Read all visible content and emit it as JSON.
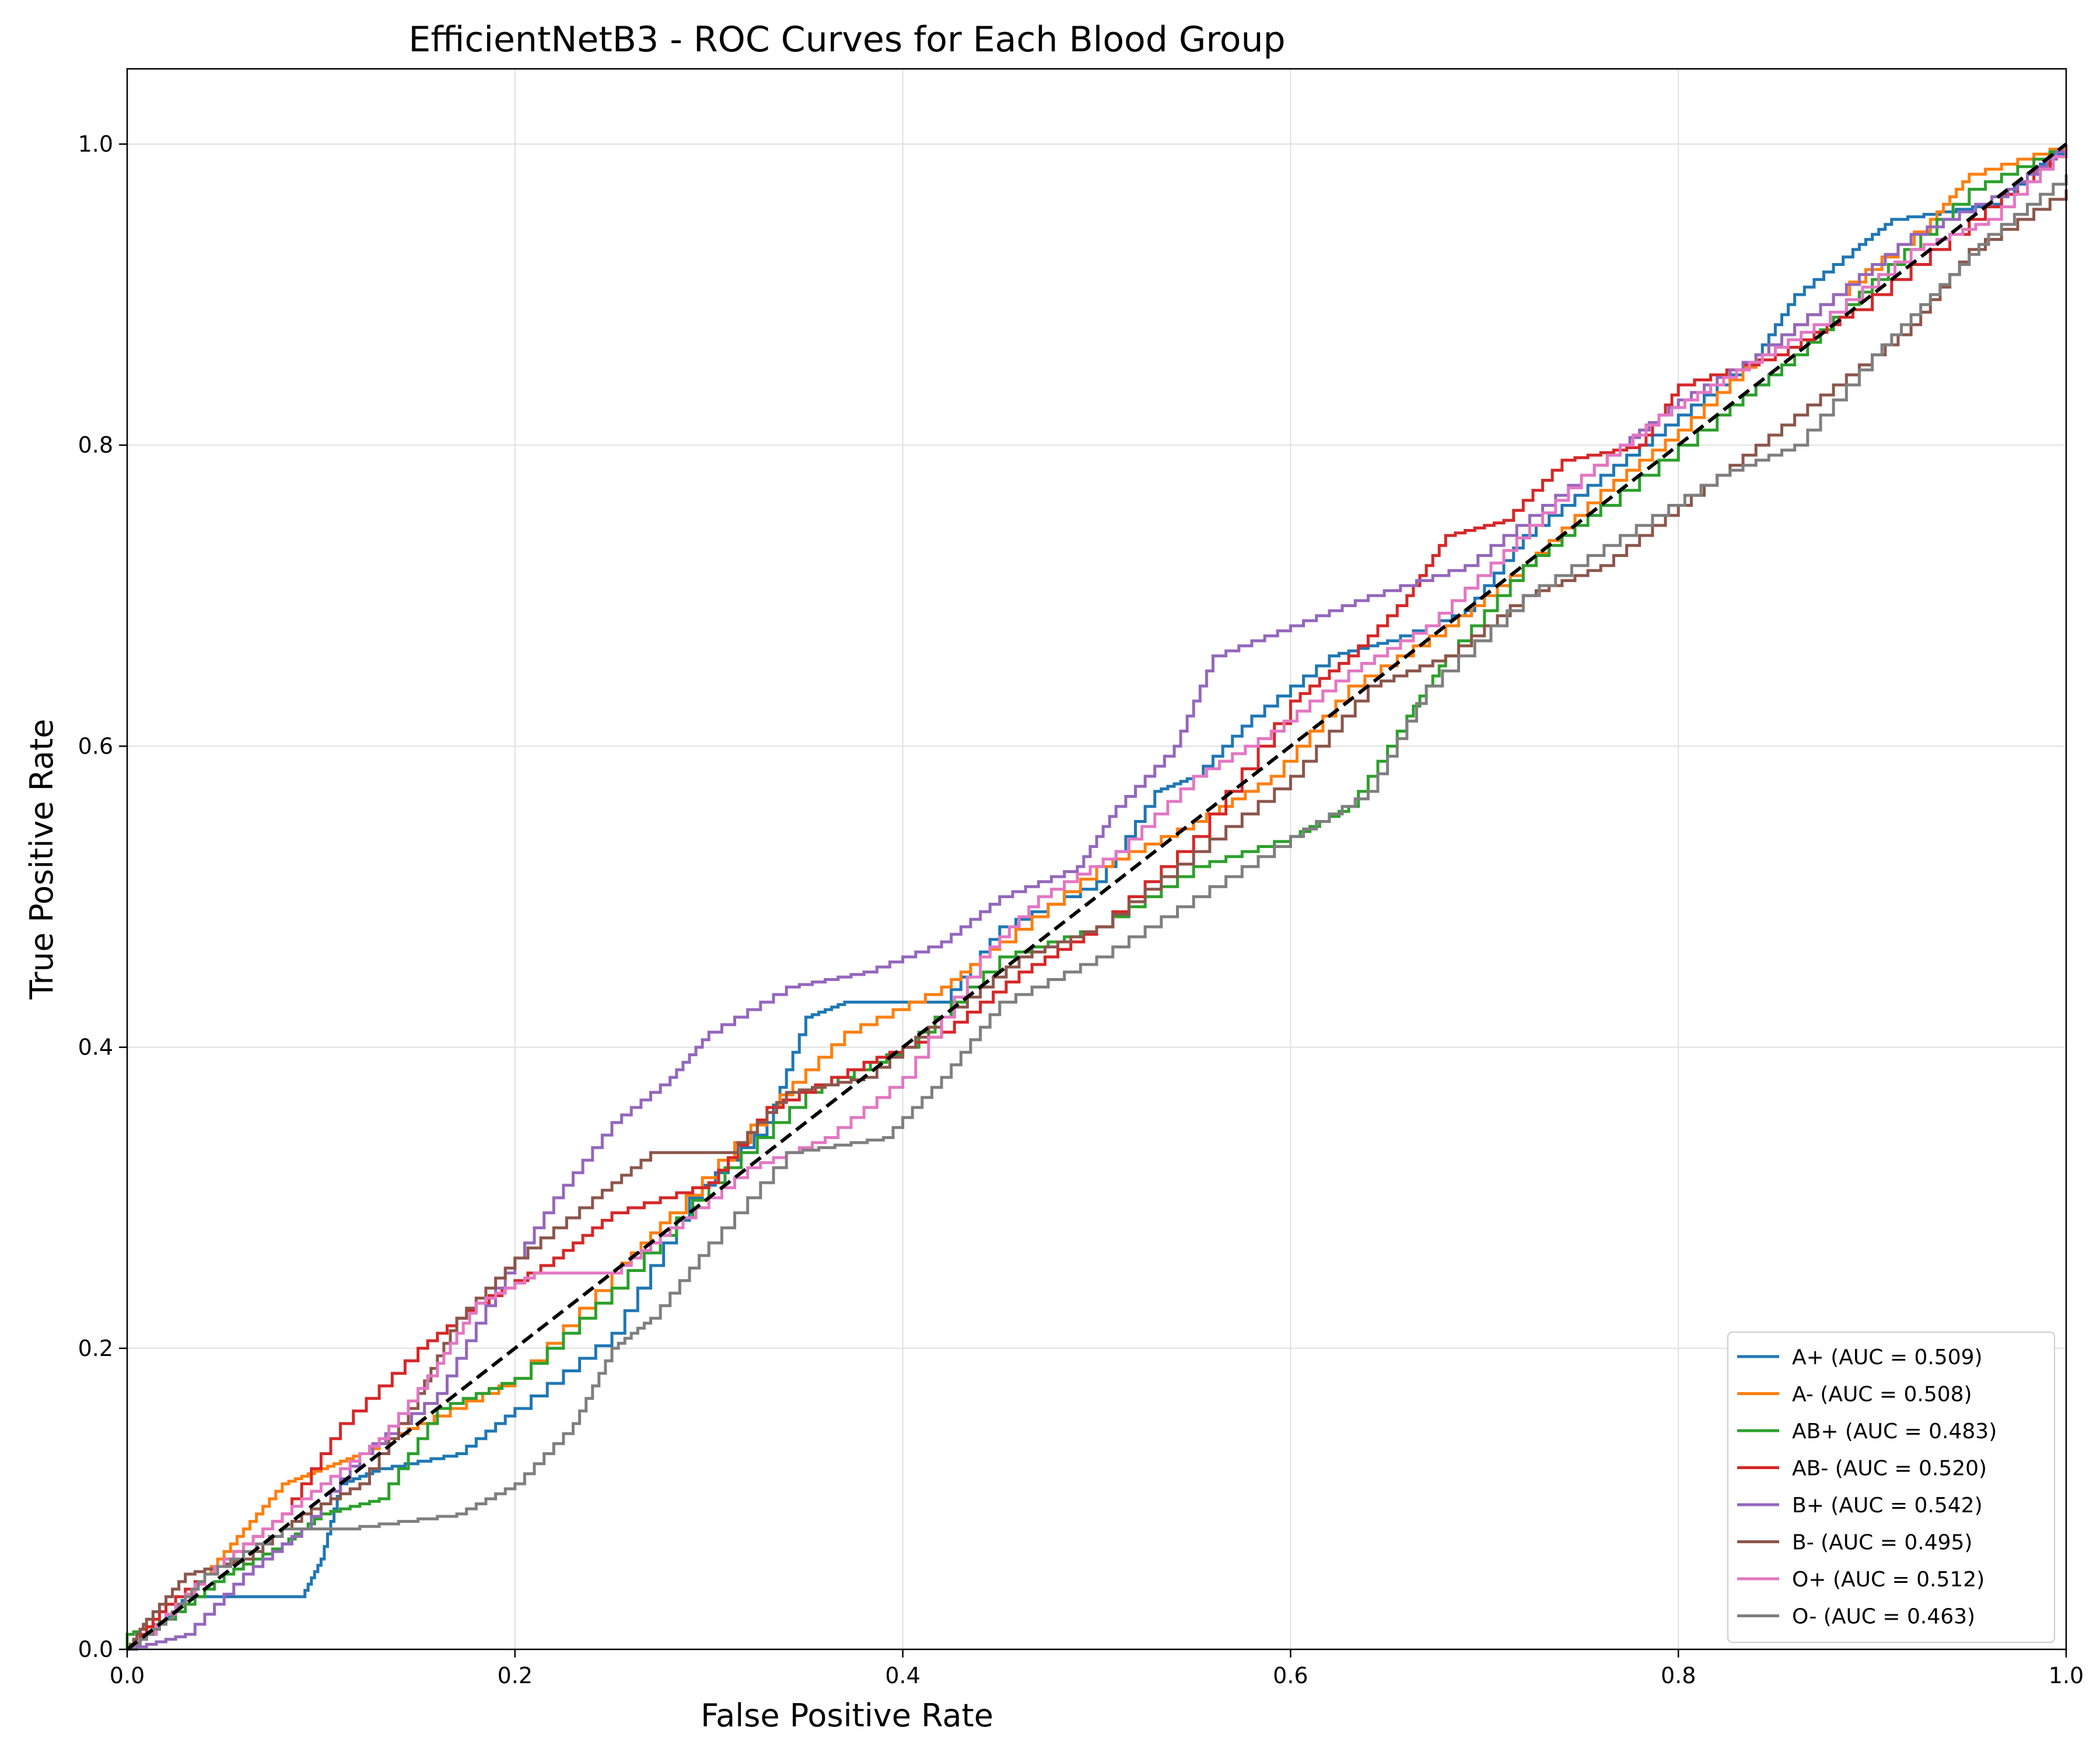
{
  "chart_data": {
    "type": "line",
    "title": "EfficientNetB3 - ROC Curves for Each Blood Group",
    "xlabel": "False Positive Rate",
    "ylabel": "True Positive Rate",
    "xlim": [
      0,
      1.0
    ],
    "ylim": [
      0,
      1.05
    ],
    "xticks": [
      0.0,
      0.2,
      0.4,
      0.6,
      0.8,
      1.0
    ],
    "xtick_labels": [
      "0.0",
      "0.2",
      "0.4",
      "0.6",
      "0.8",
      "1.0"
    ],
    "yticks": [
      0.0,
      0.2,
      0.4,
      0.6,
      0.8,
      1.0
    ],
    "ytick_labels": [
      "0.0",
      "0.2",
      "0.4",
      "0.6",
      "0.8",
      "1.0"
    ],
    "grid": true,
    "legend_position": "lower-right",
    "series": [
      {
        "name": "A+ (AUC = 0.509)",
        "color": "#1f77b4",
        "points": [
          [
            0,
            0
          ],
          [
            0.02,
            0.02
          ],
          [
            0.03,
            0.035
          ],
          [
            0.09,
            0.035
          ],
          [
            0.1,
            0.06
          ],
          [
            0.11,
            0.11
          ],
          [
            0.13,
            0.12
          ],
          [
            0.17,
            0.13
          ],
          [
            0.2,
            0.16
          ],
          [
            0.25,
            0.21
          ],
          [
            0.29,
            0.3
          ],
          [
            0.33,
            0.35
          ],
          [
            0.35,
            0.42
          ],
          [
            0.37,
            0.43
          ],
          [
            0.42,
            0.43
          ],
          [
            0.45,
            0.48
          ],
          [
            0.5,
            0.51
          ],
          [
            0.53,
            0.57
          ],
          [
            0.55,
            0.58
          ],
          [
            0.58,
            0.62
          ],
          [
            0.62,
            0.66
          ],
          [
            0.65,
            0.67
          ],
          [
            0.69,
            0.69
          ],
          [
            0.72,
            0.74
          ],
          [
            0.76,
            0.78
          ],
          [
            0.8,
            0.82
          ],
          [
            0.84,
            0.86
          ],
          [
            0.86,
            0.9
          ],
          [
            0.89,
            0.93
          ],
          [
            0.91,
            0.95
          ],
          [
            0.96,
            0.96
          ],
          [
            1.0,
            1.0
          ]
        ]
      },
      {
        "name": "A- (AUC = 0.508)",
        "color": "#ff7f0e",
        "points": [
          [
            0,
            0
          ],
          [
            0.01,
            0.01
          ],
          [
            0.04,
            0.05
          ],
          [
            0.06,
            0.08
          ],
          [
            0.08,
            0.11
          ],
          [
            0.1,
            0.12
          ],
          [
            0.12,
            0.13
          ],
          [
            0.15,
            0.15
          ],
          [
            0.2,
            0.18
          ],
          [
            0.25,
            0.25
          ],
          [
            0.28,
            0.29
          ],
          [
            0.33,
            0.36
          ],
          [
            0.37,
            0.41
          ],
          [
            0.42,
            0.44
          ],
          [
            0.45,
            0.47
          ],
          [
            0.5,
            0.52
          ],
          [
            0.55,
            0.55
          ],
          [
            0.59,
            0.58
          ],
          [
            0.63,
            0.64
          ],
          [
            0.68,
            0.68
          ],
          [
            0.72,
            0.72
          ],
          [
            0.76,
            0.77
          ],
          [
            0.8,
            0.81
          ],
          [
            0.84,
            0.86
          ],
          [
            0.88,
            0.9
          ],
          [
            0.93,
            0.95
          ],
          [
            0.95,
            0.98
          ],
          [
            1.0,
            1.0
          ]
        ]
      },
      {
        "name": "AB+ (AUC = 0.483)",
        "color": "#2ca02c",
        "points": [
          [
            0,
            0
          ],
          [
            0,
            0.01
          ],
          [
            0.02,
            0.02
          ],
          [
            0.05,
            0.05
          ],
          [
            0.08,
            0.07
          ],
          [
            0.1,
            0.09
          ],
          [
            0.13,
            0.1
          ],
          [
            0.16,
            0.16
          ],
          [
            0.2,
            0.18
          ],
          [
            0.25,
            0.24
          ],
          [
            0.3,
            0.31
          ],
          [
            0.35,
            0.37
          ],
          [
            0.4,
            0.4
          ],
          [
            0.45,
            0.46
          ],
          [
            0.5,
            0.48
          ],
          [
            0.55,
            0.52
          ],
          [
            0.6,
            0.54
          ],
          [
            0.63,
            0.56
          ],
          [
            0.66,
            0.62
          ],
          [
            0.68,
            0.66
          ],
          [
            0.72,
            0.72
          ],
          [
            0.76,
            0.76
          ],
          [
            0.82,
            0.82
          ],
          [
            0.86,
            0.86
          ],
          [
            0.9,
            0.91
          ],
          [
            0.95,
            0.97
          ],
          [
            1.0,
            1.0
          ]
        ]
      },
      {
        "name": "AB- (AUC = 0.520)",
        "color": "#d62728",
        "points": [
          [
            0,
            0
          ],
          [
            0.02,
            0.03
          ],
          [
            0.05,
            0.06
          ],
          [
            0.08,
            0.09
          ],
          [
            0.11,
            0.15
          ],
          [
            0.15,
            0.2
          ],
          [
            0.18,
            0.23
          ],
          [
            0.22,
            0.26
          ],
          [
            0.25,
            0.29
          ],
          [
            0.3,
            0.31
          ],
          [
            0.33,
            0.36
          ],
          [
            0.38,
            0.39
          ],
          [
            0.42,
            0.41
          ],
          [
            0.46,
            0.45
          ],
          [
            0.5,
            0.48
          ],
          [
            0.55,
            0.54
          ],
          [
            0.6,
            0.63
          ],
          [
            0.63,
            0.66
          ],
          [
            0.66,
            0.7
          ],
          [
            0.68,
            0.74
          ],
          [
            0.71,
            0.75
          ],
          [
            0.74,
            0.79
          ],
          [
            0.78,
            0.8
          ],
          [
            0.8,
            0.84
          ],
          [
            0.85,
            0.86
          ],
          [
            0.89,
            0.89
          ],
          [
            0.95,
            0.95
          ],
          [
            1.0,
            1.0
          ]
        ]
      },
      {
        "name": "B+ (AUC = 0.542)",
        "color": "#9467bd",
        "points": [
          [
            0,
            0
          ],
          [
            0.03,
            0.01
          ],
          [
            0.06,
            0.05
          ],
          [
            0.09,
            0.08
          ],
          [
            0.12,
            0.13
          ],
          [
            0.16,
            0.17
          ],
          [
            0.19,
            0.24
          ],
          [
            0.22,
            0.3
          ],
          [
            0.25,
            0.35
          ],
          [
            0.28,
            0.38
          ],
          [
            0.3,
            0.41
          ],
          [
            0.34,
            0.44
          ],
          [
            0.38,
            0.45
          ],
          [
            0.42,
            0.47
          ],
          [
            0.45,
            0.5
          ],
          [
            0.49,
            0.52
          ],
          [
            0.51,
            0.56
          ],
          [
            0.54,
            0.6
          ],
          [
            0.56,
            0.66
          ],
          [
            0.6,
            0.68
          ],
          [
            0.64,
            0.7
          ],
          [
            0.69,
            0.72
          ],
          [
            0.73,
            0.76
          ],
          [
            0.77,
            0.8
          ],
          [
            0.8,
            0.83
          ],
          [
            0.84,
            0.86
          ],
          [
            0.88,
            0.9
          ],
          [
            0.92,
            0.94
          ],
          [
            0.97,
            0.97
          ],
          [
            1.0,
            1.0
          ]
        ]
      },
      {
        "name": "B- (AUC = 0.495)",
        "color": "#8c564b",
        "points": [
          [
            0,
            0
          ],
          [
            0.01,
            0.02
          ],
          [
            0.03,
            0.05
          ],
          [
            0.06,
            0.06
          ],
          [
            0.09,
            0.09
          ],
          [
            0.12,
            0.11
          ],
          [
            0.15,
            0.17
          ],
          [
            0.17,
            0.22
          ],
          [
            0.2,
            0.26
          ],
          [
            0.24,
            0.3
          ],
          [
            0.27,
            0.33
          ],
          [
            0.31,
            0.33
          ],
          [
            0.34,
            0.37
          ],
          [
            0.38,
            0.38
          ],
          [
            0.42,
            0.42
          ],
          [
            0.46,
            0.46
          ],
          [
            0.5,
            0.48
          ],
          [
            0.55,
            0.53
          ],
          [
            0.6,
            0.58
          ],
          [
            0.64,
            0.64
          ],
          [
            0.68,
            0.66
          ],
          [
            0.72,
            0.7
          ],
          [
            0.76,
            0.72
          ],
          [
            0.8,
            0.76
          ],
          [
            0.84,
            0.8
          ],
          [
            0.88,
            0.84
          ],
          [
            0.92,
            0.88
          ],
          [
            0.95,
            0.93
          ],
          [
            1.0,
            0.97
          ]
        ]
      },
      {
        "name": "O+ (AUC = 0.512)",
        "color": "#e377c2",
        "points": [
          [
            0,
            0
          ],
          [
            0.01,
            0.01
          ],
          [
            0.04,
            0.05
          ],
          [
            0.07,
            0.08
          ],
          [
            0.1,
            0.11
          ],
          [
            0.13,
            0.14
          ],
          [
            0.16,
            0.19
          ],
          [
            0.18,
            0.23
          ],
          [
            0.21,
            0.25
          ],
          [
            0.25,
            0.25
          ],
          [
            0.28,
            0.28
          ],
          [
            0.32,
            0.32
          ],
          [
            0.36,
            0.34
          ],
          [
            0.4,
            0.38
          ],
          [
            0.44,
            0.46
          ],
          [
            0.47,
            0.5
          ],
          [
            0.51,
            0.53
          ],
          [
            0.55,
            0.58
          ],
          [
            0.59,
            0.61
          ],
          [
            0.63,
            0.65
          ],
          [
            0.67,
            0.68
          ],
          [
            0.71,
            0.73
          ],
          [
            0.75,
            0.78
          ],
          [
            0.79,
            0.82
          ],
          [
            0.83,
            0.85
          ],
          [
            0.87,
            0.88
          ],
          [
            0.92,
            0.93
          ],
          [
            0.96,
            0.95
          ],
          [
            1.0,
            1.0
          ]
        ]
      },
      {
        "name": "O- (AUC = 0.463)",
        "color": "#7f7f7f",
        "points": [
          [
            0,
            0
          ],
          [
            0.02,
            0.02
          ],
          [
            0.04,
            0.05
          ],
          [
            0.08,
            0.08
          ],
          [
            0.11,
            0.08
          ],
          [
            0.17,
            0.09
          ],
          [
            0.2,
            0.11
          ],
          [
            0.23,
            0.15
          ],
          [
            0.25,
            0.2
          ],
          [
            0.27,
            0.22
          ],
          [
            0.3,
            0.27
          ],
          [
            0.34,
            0.33
          ],
          [
            0.39,
            0.34
          ],
          [
            0.42,
            0.38
          ],
          [
            0.45,
            0.43
          ],
          [
            0.5,
            0.46
          ],
          [
            0.55,
            0.5
          ],
          [
            0.6,
            0.54
          ],
          [
            0.64,
            0.57
          ],
          [
            0.67,
            0.64
          ],
          [
            0.72,
            0.7
          ],
          [
            0.77,
            0.74
          ],
          [
            0.82,
            0.78
          ],
          [
            0.86,
            0.8
          ],
          [
            0.9,
            0.86
          ],
          [
            0.93,
            0.9
          ],
          [
            0.96,
            0.94
          ],
          [
            1.0,
            0.98
          ]
        ]
      },
      {
        "name": "",
        "color": "#000000",
        "dashed": true,
        "points": [
          [
            0,
            0
          ],
          [
            1,
            1
          ]
        ]
      }
    ]
  }
}
